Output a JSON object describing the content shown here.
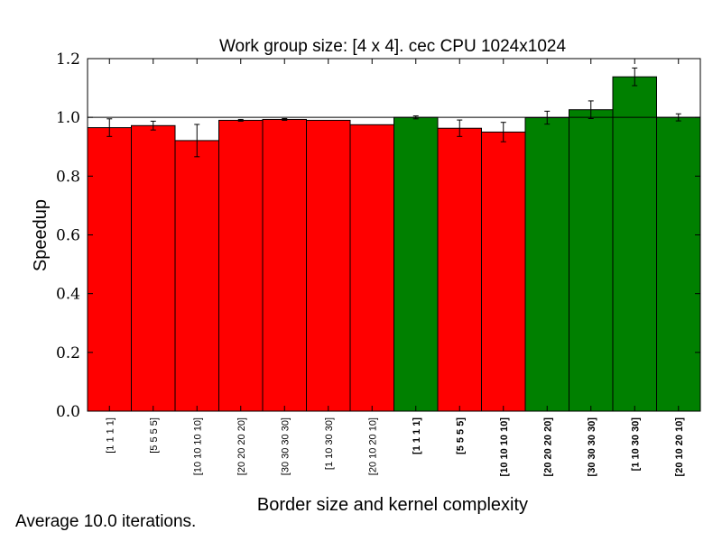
{
  "footnote": "Average 10.0 iterations.",
  "colors": {
    "slower": "#ff0000",
    "faster": "#008000",
    "edge": "#000000"
  },
  "chart_data": {
    "type": "bar",
    "title": "Work group size: [4 x 4]. cec CPU 1024x1024",
    "xlabel": "Border size and kernel complexity",
    "ylabel": "Speedup",
    "ylim": [
      0.0,
      1.2
    ],
    "yticks": [
      "0.0",
      "0.2",
      "0.4",
      "0.6",
      "0.8",
      "1.0",
      "1.2"
    ],
    "reference_line": 1.0,
    "grid": false,
    "categories": [
      "[1 1 1 1]",
      "[5 5 5 5]",
      "[10 10 10 10]",
      "[20 20 20 20]",
      "[30 30 30 30]",
      "[1 10 30 30]",
      "[20 10 20 10]",
      "[1 1 1 1]",
      "[5 5 5 5]",
      "[10 10 10 10]",
      "[20 20 20 20]",
      "[30 30 30 30]",
      "[1 10 30 30]",
      "[20 10 20 10]"
    ],
    "bold_labels": [
      false,
      false,
      false,
      false,
      false,
      false,
      false,
      true,
      true,
      true,
      true,
      true,
      true,
      true
    ],
    "values": [
      0.965,
      0.972,
      0.921,
      0.99,
      0.993,
      0.99,
      0.975,
      1.0,
      0.963,
      0.95,
      0.999,
      1.026,
      1.138,
      1.0
    ],
    "errors": [
      0.03,
      0.015,
      0.055,
      0.003,
      0.003,
      0.0,
      0.0,
      0.005,
      0.028,
      0.033,
      0.022,
      0.03,
      0.03,
      0.012
    ],
    "bar_colors": [
      "#ff0000",
      "#ff0000",
      "#ff0000",
      "#ff0000",
      "#ff0000",
      "#ff0000",
      "#ff0000",
      "#008000",
      "#ff0000",
      "#ff0000",
      "#008000",
      "#008000",
      "#008000",
      "#008000"
    ]
  }
}
